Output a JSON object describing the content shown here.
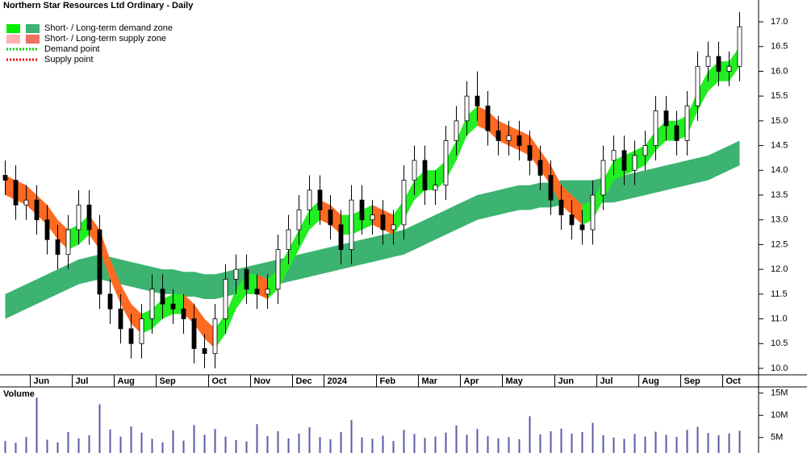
{
  "chart_data": [
    {
      "type": "candlestick",
      "title": "Northern Star Resources Ltd Ordinary - Daily",
      "legend": [
        {
          "label": "Short- / Long-term demand zone",
          "colors": [
            "#00ee00",
            "#3cb371"
          ]
        },
        {
          "label": "Short- / Long-term supply zone",
          "colors": [
            "#ffb0b0",
            "#f07060"
          ]
        },
        {
          "label": "Demand point",
          "color": "#00cc00",
          "dotted": true
        },
        {
          "label": "Supply point",
          "color": "#ee0000",
          "dotted": true
        }
      ],
      "categories": [
        null,
        null,
        null,
        "Jun",
        null,
        null,
        null,
        "Jul",
        null,
        null,
        null,
        "Aug",
        null,
        null,
        null,
        "Sep",
        null,
        null,
        null,
        null,
        "Oct",
        null,
        null,
        null,
        "Nov",
        null,
        null,
        null,
        "Dec",
        null,
        null,
        "2024",
        null,
        null,
        null,
        null,
        "Feb",
        null,
        null,
        null,
        "Mar",
        null,
        null,
        null,
        "Apr",
        null,
        null,
        null,
        "May",
        null,
        null,
        null,
        null,
        "Jun",
        null,
        null,
        null,
        "Jul",
        null,
        null,
        null,
        "Aug",
        null,
        null,
        null,
        "Sep",
        null,
        null,
        null,
        "Oct",
        null
      ],
      "open": [
        13.9,
        13.8,
        13.3,
        13.4,
        13.0,
        12.6,
        12.3,
        12.8,
        13.3,
        12.8,
        11.5,
        11.2,
        10.8,
        10.5,
        11.0,
        11.6,
        11.3,
        11.2,
        11.0,
        10.4,
        10.3,
        11.0,
        11.8,
        12.0,
        11.6,
        11.5,
        11.6,
        12.4,
        12.8,
        13.2,
        13.6,
        13.2,
        12.9,
        12.4,
        13.4,
        13.0,
        13.1,
        12.8,
        12.9,
        13.8,
        14.2,
        13.6,
        13.7,
        14.6,
        15.0,
        15.5,
        15.3,
        14.8,
        14.6,
        14.7,
        14.5,
        14.2,
        13.9,
        13.4,
        13.1,
        12.9,
        12.8,
        13.5,
        14.2,
        14.4,
        14.0,
        14.3,
        14.5,
        15.2,
        14.9,
        14.6,
        15.3,
        16.1,
        16.3,
        16.0,
        16.1
      ],
      "high": [
        14.2,
        14.1,
        13.7,
        13.7,
        13.3,
        12.9,
        13.1,
        13.6,
        13.6,
        13.1,
        11.8,
        11.5,
        11.1,
        11.3,
        11.9,
        11.9,
        11.6,
        11.5,
        11.3,
        10.7,
        11.3,
        12.1,
        12.3,
        12.3,
        11.9,
        11.9,
        12.7,
        13.1,
        13.5,
        13.9,
        13.9,
        13.5,
        13.2,
        13.7,
        13.7,
        13.4,
        13.4,
        13.2,
        14.1,
        14.5,
        14.5,
        14.0,
        14.9,
        15.3,
        15.8,
        16.0,
        15.6,
        15.1,
        15.0,
        15.0,
        14.8,
        14.5,
        14.2,
        13.7,
        13.4,
        13.2,
        13.8,
        14.5,
        14.7,
        14.7,
        14.6,
        14.8,
        15.5,
        15.5,
        15.2,
        15.6,
        16.4,
        16.6,
        16.6,
        16.4,
        17.2
      ],
      "low": [
        13.5,
        13.0,
        13.0,
        12.7,
        12.3,
        12.0,
        12.0,
        12.5,
        12.5,
        11.2,
        10.9,
        10.5,
        10.2,
        10.2,
        10.7,
        11.0,
        10.9,
        10.7,
        10.1,
        10.0,
        10.0,
        10.7,
        11.5,
        11.3,
        11.2,
        11.2,
        11.3,
        12.1,
        12.5,
        12.9,
        12.9,
        12.6,
        12.1,
        12.1,
        12.7,
        12.7,
        12.5,
        12.5,
        12.6,
        13.5,
        13.3,
        13.3,
        13.4,
        14.3,
        14.7,
        15.0,
        14.5,
        14.3,
        14.3,
        14.2,
        13.9,
        13.6,
        13.1,
        12.8,
        12.6,
        12.5,
        12.5,
        13.2,
        13.9,
        13.7,
        13.7,
        14.0,
        14.2,
        14.6,
        14.3,
        14.3,
        15.0,
        15.8,
        15.7,
        15.7,
        15.8
      ],
      "close": [
        13.8,
        13.3,
        13.4,
        13.0,
        12.6,
        12.3,
        12.8,
        13.3,
        12.8,
        11.5,
        11.2,
        10.8,
        10.5,
        11.0,
        11.6,
        11.3,
        11.2,
        11.0,
        10.4,
        10.3,
        11.0,
        11.8,
        12.0,
        11.6,
        11.5,
        11.6,
        12.4,
        12.8,
        13.2,
        13.6,
        13.2,
        12.9,
        12.4,
        13.4,
        13.0,
        13.1,
        12.8,
        12.9,
        13.8,
        14.2,
        13.6,
        13.7,
        14.6,
        15.0,
        15.5,
        15.3,
        14.8,
        14.6,
        14.7,
        14.5,
        14.2,
        13.9,
        13.4,
        13.1,
        12.9,
        12.8,
        13.5,
        14.2,
        14.4,
        14.0,
        14.3,
        14.5,
        15.2,
        14.9,
        14.6,
        15.3,
        16.1,
        16.3,
        16.0,
        16.1,
        16.9
      ],
      "short_term_band": {
        "rising_color": "#22ee22",
        "falling_color": "#ff6a22",
        "lower": [
          13.5,
          13.4,
          13.3,
          13.1,
          12.9,
          12.6,
          12.4,
          12.5,
          12.7,
          12.4,
          11.8,
          11.3,
          10.9,
          10.7,
          10.8,
          11.0,
          11.1,
          11.1,
          10.9,
          10.6,
          10.4,
          10.7,
          11.2,
          11.5,
          11.5,
          11.4,
          11.6,
          12.0,
          12.4,
          12.8,
          13.0,
          12.9,
          12.7,
          12.7,
          12.8,
          12.9,
          12.8,
          12.7,
          13.0,
          13.4,
          13.6,
          13.6,
          13.8,
          14.2,
          14.7,
          14.9,
          14.8,
          14.6,
          14.5,
          14.4,
          14.3,
          14.0,
          13.7,
          13.3,
          13.1,
          12.9,
          13.0,
          13.4,
          13.8,
          13.9,
          14.0,
          14.1,
          14.4,
          14.6,
          14.6,
          14.7,
          15.2,
          15.6,
          15.8,
          15.8,
          16.1
        ],
        "upper": [
          13.9,
          13.8,
          13.7,
          13.5,
          13.3,
          13.0,
          12.8,
          12.9,
          13.1,
          12.8,
          12.2,
          11.7,
          11.3,
          11.1,
          11.2,
          11.4,
          11.5,
          11.5,
          11.3,
          11.0,
          10.8,
          11.1,
          11.6,
          11.9,
          11.9,
          11.8,
          12.0,
          12.4,
          12.8,
          13.2,
          13.4,
          13.3,
          13.1,
          13.1,
          13.2,
          13.3,
          13.2,
          13.1,
          13.4,
          13.8,
          14.0,
          14.0,
          14.2,
          14.6,
          15.1,
          15.3,
          15.2,
          15.0,
          14.9,
          14.8,
          14.7,
          14.4,
          14.1,
          13.7,
          13.5,
          13.3,
          13.4,
          13.8,
          14.2,
          14.3,
          14.4,
          14.5,
          14.8,
          15.0,
          15.0,
          15.1,
          15.6,
          16.0,
          16.2,
          16.2,
          16.5
        ]
      },
      "long_term_band": {
        "color": "#3cb371",
        "lower": [
          11.0,
          11.1,
          11.2,
          11.3,
          11.4,
          11.5,
          11.6,
          11.7,
          11.75,
          11.8,
          11.75,
          11.7,
          11.65,
          11.6,
          11.55,
          11.5,
          11.5,
          11.45,
          11.45,
          11.4,
          11.4,
          11.45,
          11.5,
          11.55,
          11.6,
          11.65,
          11.7,
          11.75,
          11.8,
          11.85,
          11.9,
          11.95,
          12.0,
          12.05,
          12.1,
          12.15,
          12.2,
          12.25,
          12.3,
          12.4,
          12.5,
          12.6,
          12.7,
          12.8,
          12.9,
          13.0,
          13.05,
          13.1,
          13.15,
          13.2,
          13.2,
          13.25,
          13.25,
          13.3,
          13.3,
          13.3,
          13.3,
          13.35,
          13.35,
          13.4,
          13.45,
          13.5,
          13.55,
          13.6,
          13.65,
          13.7,
          13.75,
          13.8,
          13.9,
          14.0,
          14.1
        ],
        "upper": [
          11.5,
          11.6,
          11.7,
          11.8,
          11.9,
          12.0,
          12.1,
          12.2,
          12.25,
          12.3,
          12.25,
          12.2,
          12.15,
          12.1,
          12.05,
          12.0,
          12.0,
          11.95,
          11.95,
          11.9,
          11.9,
          11.95,
          12.0,
          12.05,
          12.1,
          12.15,
          12.2,
          12.25,
          12.3,
          12.35,
          12.4,
          12.45,
          12.5,
          12.55,
          12.6,
          12.65,
          12.7,
          12.75,
          12.8,
          12.9,
          13.0,
          13.1,
          13.2,
          13.3,
          13.4,
          13.5,
          13.55,
          13.6,
          13.65,
          13.7,
          13.7,
          13.75,
          13.75,
          13.8,
          13.8,
          13.8,
          13.8,
          13.85,
          13.85,
          13.9,
          13.95,
          14.0,
          14.05,
          14.1,
          14.15,
          14.2,
          14.25,
          14.3,
          14.4,
          14.5,
          14.6
        ]
      },
      "ylim": [
        9.87,
        17.44
      ],
      "yticks": [
        {
          "value": 10,
          "label": "10.0"
        },
        {
          "value": 10.5,
          "label": "10.5"
        },
        {
          "value": 11,
          "label": "11.0"
        },
        {
          "value": 11.5,
          "label": "11.5"
        },
        {
          "value": 12,
          "label": "12.0"
        },
        {
          "value": 12.5,
          "label": "12.5"
        },
        {
          "value": 13,
          "label": "13.0"
        },
        {
          "value": 13.5,
          "label": "13.5"
        },
        {
          "value": 14,
          "label": "14.0"
        },
        {
          "value": 14.5,
          "label": "14.5"
        },
        {
          "value": 15,
          "label": "15.0"
        },
        {
          "value": 15.5,
          "label": "15.5"
        },
        {
          "value": 16,
          "label": "16.0"
        },
        {
          "value": 16.5,
          "label": "16.5"
        },
        {
          "value": 17,
          "label": "17.0"
        }
      ]
    },
    {
      "type": "bar",
      "title": "Volume",
      "color": "#5a5aa8",
      "values": [
        4200000,
        3800000,
        5100000,
        14000000,
        4500000,
        3900000,
        6200000,
        4800000,
        5500000,
        12500000,
        6800000,
        5200000,
        7500000,
        6100000,
        4700000,
        3900000,
        6600000,
        4300000,
        7800000,
        5600000,
        6900000,
        5200000,
        4400000,
        4100000,
        8000000,
        5300000,
        6400000,
        4800000,
        5900000,
        7300000,
        5100000,
        4600000,
        6200000,
        8900000,
        5000000,
        4700000,
        5400000,
        4200000,
        6700000,
        5800000,
        4900000,
        5200000,
        6100000,
        7700000,
        5600000,
        6900000,
        5300000,
        4800000,
        5100000,
        4600000,
        9800000,
        5700000,
        6400000,
        7000000,
        5900000,
        6200000,
        8300000,
        5500000,
        5000000,
        4700000,
        5800000,
        5200000,
        6300000,
        5600000,
        5100000,
        6700000,
        7400000,
        6000000,
        5500000,
        5900000,
        6500000
      ],
      "ylim": [
        1500000,
        16400000
      ],
      "yticks": [
        {
          "value": 5000000,
          "label": "5M"
        },
        {
          "value": 10000000,
          "label": "10M"
        },
        {
          "value": 15000000,
          "label": "15M"
        }
      ]
    }
  ]
}
